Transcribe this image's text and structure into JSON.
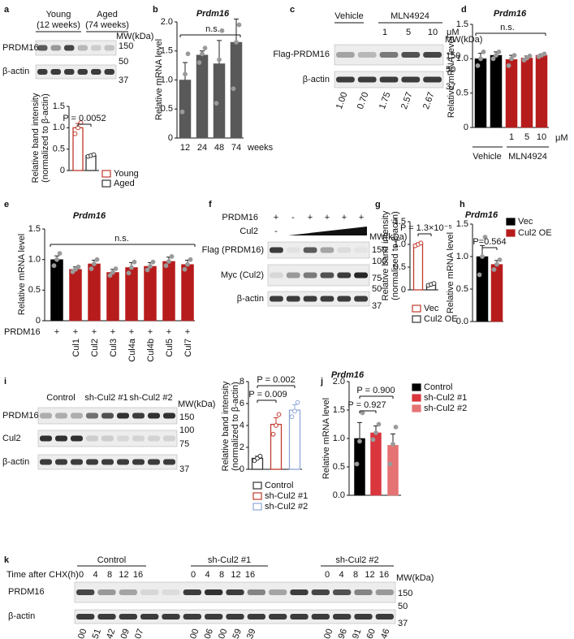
{
  "chart_data": [
    {
      "type": "bar",
      "bar_style": "outline",
      "ylabel": [
        "Relative band intensity",
        "(normalized to β-actin)"
      ],
      "ylim": [
        0,
        1.5
      ],
      "yticks": [
        0,
        0.5,
        {
          "value": 1,
          "label": "1.0"
        },
        1.5
      ],
      "series": [
        {
          "name": "Young",
          "color": "#c0392b",
          "values": [
            1.0
          ],
          "errors": [
            0.1
          ],
          "points": [
            [
              0.86,
              1.0,
              1.12
            ]
          ]
        },
        {
          "name": "Aged",
          "color": "#333333",
          "values": [
            0.35
          ],
          "errors": [
            0.02
          ],
          "points": [
            [
              0.33,
              0.35,
              0.37
            ]
          ]
        }
      ],
      "annotations": [
        "P = 0.0052"
      ]
    },
    {
      "type": "bar",
      "bar_style": "solid",
      "panel": "b",
      "title": "Prdm16",
      "ylabel": "Relative mRNA level",
      "categories": [
        "12",
        "24",
        "48",
        "74"
      ],
      "xlabel": "weeks",
      "values": [
        1.0,
        1.43,
        1.28,
        1.65
      ],
      "errors": [
        0.3,
        0.07,
        0.4,
        0.4
      ],
      "points": [
        [
          0.45,
          1.1,
          1.45
        ],
        [
          1.3,
          1.45,
          1.55
        ],
        [
          0.6,
          1.35,
          1.85
        ],
        [
          0.85,
          1.65,
          1.95
        ]
      ],
      "colors": [
        "#595959",
        "#595959",
        "#595959",
        "#595959"
      ],
      "ylim": [
        0,
        2.0
      ],
      "yticks": [
        0,
        0.5,
        {
          "value": 1,
          "label": "1.0"
        },
        1.5,
        {
          "value": 2,
          "label": "2.0"
        }
      ],
      "annotations": [
        "n.s."
      ]
    },
    {
      "type": "bar",
      "bar_style": "solid",
      "panel": "d",
      "title": "Prdm16",
      "ylabel": "Relative mRNA level",
      "categories": [
        null,
        null,
        "1",
        "5",
        "10"
      ],
      "unit": "μM",
      "groups": [
        "Vehicle",
        "MLN4924"
      ],
      "values": [
        1.0,
        1.05,
        0.99,
        1.01,
        1.05
      ],
      "errors": [
        0.08,
        0.05,
        0.06,
        0.03,
        0.02
      ],
      "points": [
        [
          0.9,
          1.0,
          1.1
        ],
        [
          1.0,
          1.05,
          1.1
        ],
        [
          0.9,
          1.0,
          1.05
        ],
        [
          0.98,
          1.01,
          1.04
        ],
        [
          1.03,
          1.05,
          1.07
        ]
      ],
      "colors": [
        "#000000",
        "#000000",
        "#b71c1c",
        "#b71c1c",
        "#b71c1c"
      ],
      "ylim": [
        0,
        1.5
      ],
      "yticks": [
        0,
        0.5,
        {
          "value": 1,
          "label": "1.0"
        },
        1.5
      ],
      "annotations": [
        "n.s."
      ]
    },
    {
      "type": "bar",
      "bar_style": "solid",
      "panel": "e",
      "title": "Prdm16",
      "ylabel": "Relative mRNA level",
      "categories": [
        null,
        "Cul1",
        "Cul2",
        "Cul3",
        "Cul4a",
        "Cul4b",
        "Cul5",
        "Cul7"
      ],
      "row_label": "PRDM16",
      "row_values": [
        "+",
        "+",
        "+",
        "+",
        "+",
        "+",
        "+",
        "+"
      ],
      "values": [
        1.0,
        0.84,
        0.93,
        0.79,
        0.87,
        0.89,
        0.97,
        0.92
      ],
      "errors": [
        0.06,
        0.04,
        0.06,
        0.05,
        0.08,
        0.06,
        0.07,
        0.07
      ],
      "points": [
        [
          0.9,
          1.0,
          1.1
        ],
        [
          0.8,
          0.84,
          0.88
        ],
        [
          0.85,
          0.93,
          1.0
        ],
        [
          0.74,
          0.79,
          0.85
        ],
        [
          0.78,
          0.87,
          0.96
        ],
        [
          0.83,
          0.89,
          0.96
        ],
        [
          0.9,
          0.97,
          1.05
        ],
        [
          0.84,
          0.92,
          1.0
        ]
      ],
      "colors": [
        "#000000",
        "#b71c1c",
        "#b71c1c",
        "#b71c1c",
        "#b71c1c",
        "#b71c1c",
        "#b71c1c",
        "#b71c1c"
      ],
      "ylim": [
        0,
        1.5
      ],
      "yticks": [
        0,
        0.5,
        {
          "value": 1,
          "label": "1.0"
        },
        1.5
      ],
      "annotations": [
        "n.s."
      ]
    },
    {
      "type": "bar",
      "bar_style": "outline",
      "panel": "g",
      "ylabel": [
        "Relative band intensity",
        "(normalized to β-actin)"
      ],
      "ylim": [
        0,
        1.5
      ],
      "yticks": [
        0,
        0.5,
        {
          "value": 1,
          "label": "1.0"
        },
        1.5
      ],
      "series": [
        {
          "name": "Vec",
          "color": "#c0392b",
          "values": [
            1.0
          ],
          "errors": [
            0.03
          ],
          "points": [
            [
              0.97,
              1.0,
              1.03
            ]
          ]
        },
        {
          "name": "Cul2 OE",
          "color": "#333333",
          "values": [
            0.12
          ],
          "errors": [
            0.02
          ],
          "points": [
            [
              0.1,
              0.12,
              0.14
            ]
          ]
        }
      ],
      "annotations": [
        "P = 1.3×10⁻⁵"
      ]
    },
    {
      "type": "bar",
      "bar_style": "solid",
      "panel": "h",
      "title": "Prdm16",
      "ylabel": "Relative mRNA level",
      "ylim": [
        0,
        1.5
      ],
      "yticks": [
        {
          "value": 0,
          "label": "0.0"
        },
        0.5,
        {
          "value": 1,
          "label": "1.0"
        },
        1.5
      ],
      "series": [
        {
          "name": "Vec",
          "color": "#000000",
          "values": [
            1.0
          ],
          "errors": [
            0.17
          ],
          "points": [
            [
              0.72,
              1.0,
              1.3
            ]
          ]
        },
        {
          "name": "Cul2 OE",
          "color": "#b71c1c",
          "values": [
            0.88
          ],
          "errors": [
            0.06
          ],
          "points": [
            [
              0.8,
              0.88,
              0.95
            ]
          ]
        }
      ],
      "annotations": [
        "P=0.564"
      ]
    },
    {
      "type": "bar",
      "bar_style": "outline",
      "ylabel": [
        "Relative band intensity",
        "(normalized to β-actin)"
      ],
      "ylim": [
        0,
        8
      ],
      "yticks": [
        0,
        2,
        4,
        6,
        8
      ],
      "series": [
        {
          "name": "Control",
          "color": "#333333",
          "values": [
            1.0
          ],
          "errors": [
            0.2
          ],
          "points": [
            [
              0.8,
              1.0,
              1.2
            ]
          ]
        },
        {
          "name": "sh-Cul2 #1",
          "color": "#c0392b",
          "values": [
            4.1
          ],
          "errors": [
            0.6
          ],
          "points": [
            [
              3.2,
              4.0,
              5.0
            ]
          ]
        },
        {
          "name": "sh-Cul2 #2",
          "color": "#8fa8d8",
          "values": [
            5.4
          ],
          "errors": [
            0.5
          ],
          "points": [
            [
              4.8,
              5.3,
              6.1
            ]
          ]
        }
      ],
      "annotations": [
        "P = 0.002",
        "P = 0.009"
      ]
    },
    {
      "type": "bar",
      "bar_style": "solid",
      "panel": "j",
      "title": "Prdm16",
      "ylabel": "Relative mRNA level",
      "ylim": [
        0,
        2.0
      ],
      "yticks": [
        {
          "value": 0,
          "label": "0.0"
        },
        0.5,
        {
          "value": 1,
          "label": "1.0"
        },
        1.5,
        {
          "value": 2,
          "label": "2.0"
        }
      ],
      "series": [
        {
          "name": "Control",
          "color": "#000000",
          "values": [
            1.0
          ],
          "errors": [
            0.28
          ],
          "points": [
            [
              0.55,
              0.95,
              1.45
            ]
          ]
        },
        {
          "name": "sh-Cul2 #1",
          "color": "#d9363e",
          "values": [
            1.1
          ],
          "errors": [
            0.12
          ],
          "points": [
            [
              0.98,
              1.1,
              1.25
            ]
          ]
        },
        {
          "name": "sh-Cul2 #2",
          "color": "#e57373",
          "values": [
            0.88
          ],
          "errors": [
            0.2
          ],
          "points": [
            [
              0.55,
              0.9,
              1.2
            ]
          ]
        }
      ],
      "annotations": [
        "P = 0.900",
        "P = 0.927"
      ]
    }
  ],
  "blots": [
    {
      "panel": "a",
      "group_lines": [
        [
          "Young",
          "(12 weeks)"
        ],
        [
          "Aged",
          "(74 weeks)"
        ]
      ],
      "mw_title": "MW(kDa)",
      "rows": [
        "PRDM16",
        "β-actin"
      ],
      "mw": [
        150,
        50,
        37
      ]
    },
    {
      "panel": "c",
      "groups": [
        "Vehicle",
        "MLN4924"
      ],
      "doses": [
        "1",
        "5",
        "10"
      ],
      "unit": "μM",
      "mw_title": "MW(kDa)",
      "rows": [
        "Flag-PRDM16",
        "β-actin"
      ],
      "mw": [
        150,
        50,
        37
      ],
      "quant": [
        "1.00",
        "0.70",
        "1.75",
        "2.57",
        "2.67"
      ]
    },
    {
      "panel": "f",
      "conditions": [
        {
          "label": "PRDM16",
          "marks": [
            "+",
            "-",
            "+",
            "+",
            "+",
            "+"
          ]
        },
        {
          "label": "Cul2",
          "marks": [
            "-"
          ]
        }
      ],
      "mw_title": "MW(kDa)",
      "rows": [
        "Flag (PRDM16)",
        "Myc (Cul2)",
        "β-actin"
      ],
      "mw": [
        150,
        100,
        75,
        50,
        37
      ]
    },
    {
      "panel": "i",
      "groups": [
        "Control",
        "sh-Cul2 #1",
        "sh-Cul2 #2"
      ],
      "mw_title": "MW(kDa)",
      "rows": [
        "PRDM16",
        "Cul2",
        "β-actin"
      ],
      "mw": [
        150,
        100,
        75,
        37
      ]
    },
    {
      "panel": "k",
      "time_label": "Time after CHX(h)",
      "groups": [
        "Control",
        "sh-Cul2 #1",
        "sh-Cul2 #2"
      ],
      "times": [
        "0",
        "4",
        "8",
        "12",
        "16",
        "0",
        "4",
        "8",
        "12",
        "16",
        "0",
        "4",
        "8",
        "12",
        "16"
      ],
      "mw_title": "MW(kDa)",
      "rows": [
        "PRDM16",
        "β-actin"
      ],
      "mw": [
        150,
        50,
        37
      ],
      "quant": [
        "1.00",
        "0.51",
        "0.42",
        "0.09",
        "0.07",
        "1.00",
        "1.06",
        "1.00",
        "0.59",
        "0.39",
        "1.00",
        "0.96",
        "0.91",
        "0.60",
        "0.46"
      ]
    }
  ]
}
